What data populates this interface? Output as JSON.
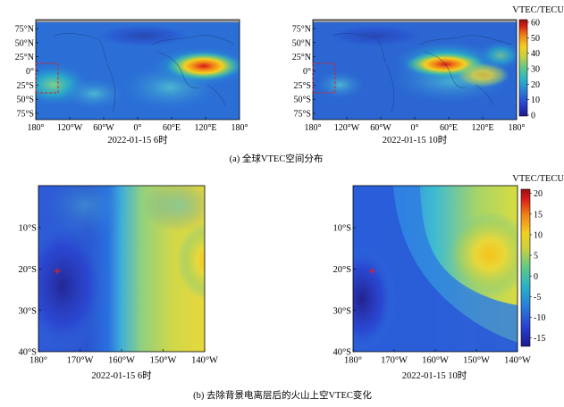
{
  "figure": {
    "panel_a_caption": "(a) 全球VTEC空间分布",
    "panel_b_caption": "(b) 去除背景电离层后的火山上空VTEC变化"
  },
  "colors": {
    "colormap": [
      "#1a1a8c",
      "#2a3fd0",
      "#2b7ad8",
      "#29b3c8",
      "#60c888",
      "#c8d040",
      "#f4d020",
      "#f08018",
      "#d81818",
      "#9a1010"
    ],
    "volcano_marker": "#e02020",
    "inset_box": "#e02020"
  },
  "chart_data": [
    {
      "type": "heatmap",
      "panel": "a-left",
      "title": "2022-01-15  6时",
      "x_ticks": [
        "180°",
        "120°W",
        "60°W",
        "0°",
        "60°E",
        "120°E",
        "180°"
      ],
      "y_ticks": [
        "75°N",
        "50°N",
        "25°N",
        "0°",
        "25°S",
        "50°S",
        "75°S"
      ],
      "colorbar": null,
      "hotspots": [
        {
          "lon": 105,
          "lat": 5,
          "vtec": 58
        },
        {
          "lon": -160,
          "lat": -5,
          "vtec": 30
        },
        {
          "lon": 50,
          "lat": -10,
          "vtec": 30
        }
      ]
    },
    {
      "type": "heatmap",
      "panel": "a-right",
      "title": "2022-01-15  10时",
      "x_ticks": [
        "180°",
        "120°W",
        "60°W",
        "0°",
        "60°E",
        "120°E",
        "180°"
      ],
      "y_ticks": [
        "75°N",
        "50°N",
        "25°N",
        "0°",
        "25°S",
        "50°S",
        "75°S"
      ],
      "colorbar": {
        "label": "VTEC/TECU",
        "ticks": [
          "60",
          "50",
          "40",
          "30",
          "20",
          "10",
          "0"
        ],
        "min": 0,
        "max": 60
      },
      "hotspots": [
        {
          "lon": 40,
          "lat": 5,
          "vtec": 55
        },
        {
          "lon": 80,
          "lat": -10,
          "vtec": 35
        },
        {
          "lon": -170,
          "lat": -15,
          "vtec": 22
        }
      ]
    },
    {
      "type": "heatmap",
      "panel": "b-left",
      "title": "2022-01-15  6时",
      "x_ticks": [
        "180°",
        "170°W",
        "160°W",
        "150°W",
        "140°W"
      ],
      "y_ticks": [
        "10°S",
        "20°S",
        "30°S",
        "40°S"
      ],
      "colorbar": null,
      "volcano": {
        "lon": -175.4,
        "lat": -20.5
      }
    },
    {
      "type": "heatmap",
      "panel": "b-right",
      "title": "2022-01-15  10时",
      "x_ticks": [
        "180°",
        "170°W",
        "160°W",
        "150°W",
        "140°W"
      ],
      "y_ticks": [
        "10°S",
        "20°S",
        "30°S",
        "40°S"
      ],
      "colorbar": {
        "label": "VTEC/TECU",
        "ticks": [
          "20",
          "15",
          "10",
          "5",
          "0",
          "-5",
          "-10",
          "-15"
        ],
        "min": -17,
        "max": 21
      },
      "volcano": {
        "lon": -175.4,
        "lat": -20.5
      }
    }
  ]
}
